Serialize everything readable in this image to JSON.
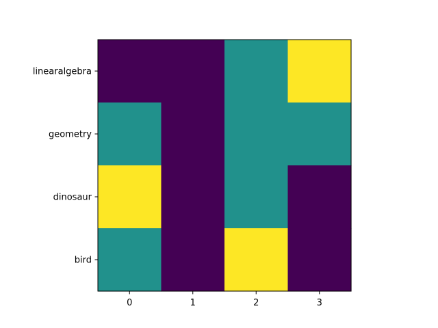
{
  "chart_data": {
    "type": "heatmap",
    "x_categories": [
      "0",
      "1",
      "2",
      "3"
    ],
    "y_categories": [
      "linearalgebra",
      "geometry",
      "dinosaur",
      "bird"
    ],
    "values": [
      [
        0,
        0,
        1,
        2
      ],
      [
        1,
        0,
        1,
        1
      ],
      [
        2,
        0,
        1,
        0
      ],
      [
        1,
        0,
        2,
        0
      ]
    ],
    "value_range": [
      0,
      2
    ],
    "colormap": {
      "0": "#440154",
      "1": "#21918c",
      "2": "#fde725"
    },
    "title": "",
    "xlabel": "",
    "ylabel": "",
    "grid": false
  }
}
